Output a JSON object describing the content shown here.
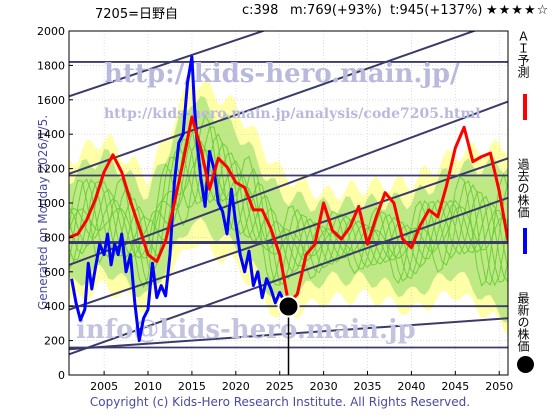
{
  "header": {
    "code_label": "7205=日野自",
    "current": "c:398",
    "mid": "m:769(+93%)",
    "top": "t:945(+137%)",
    "stars": "★★★★☆"
  },
  "side_label": "Generated on Monday 2026/1/5.",
  "watermarks": {
    "url_big": "http://kids-hero.main.jp/",
    "url_small": "http://kids-hero.main.jp/analysis/code7205.html",
    "email": "info@kids-hero.main.jp"
  },
  "legend": {
    "ai_label": "ＡＩ予測",
    "past_label": "過去の株価",
    "latest_label": "最新の株価"
  },
  "footer": "Copyright (c) Kids-Hero Research Institute. All Rights Reserved.",
  "colors": {
    "ai": "#ff0000",
    "past": "#0000ff",
    "latest": "#000000",
    "band_green": "#66cc33",
    "band_yellow": "#ffff99",
    "trend_lines": "#3b3b6b",
    "axis_text": "#000000",
    "watermark": "#9a9acc"
  },
  "chart_data": {
    "type": "line",
    "xlim": [
      2001,
      2051
    ],
    "ylim": [
      0,
      2000
    ],
    "xticks": [
      2005,
      2010,
      2015,
      2020,
      2025,
      2030,
      2035,
      2040,
      2045,
      2050
    ],
    "yticks": [
      0,
      200,
      400,
      600,
      800,
      1000,
      1200,
      1400,
      1600,
      1800,
      2000
    ],
    "horizontal_lines": [
      160,
      400,
      770,
      1160,
      1820
    ],
    "latest_point": {
      "x": 2026.0,
      "y": 398
    },
    "trend_channels": [
      {
        "from": [
          2001,
          120
        ],
        "to": [
          2051,
          1030
        ]
      },
      {
        "from": [
          2001,
          380
        ],
        "to": [
          2051,
          1260
        ]
      },
      {
        "from": [
          2001,
          640
        ],
        "to": [
          2051,
          1590
        ]
      },
      {
        "from": [
          2001,
          1170
        ],
        "to": [
          2051,
          2070
        ]
      },
      {
        "from": [
          2001,
          1620
        ],
        "to": [
          2051,
          2480
        ]
      },
      {
        "from": [
          2001,
          150
        ],
        "to": [
          2051,
          330
        ]
      }
    ],
    "series": [
      {
        "name": "過去の株価",
        "color": "#0000ff",
        "x": [
          2001.3,
          2001.8,
          2002.3,
          2002.8,
          2003.2,
          2003.6,
          2004.0,
          2004.5,
          2005.0,
          2005.4,
          2005.8,
          2006.2,
          2006.6,
          2007.0,
          2007.5,
          2008.0,
          2008.5,
          2009.0,
          2009.5,
          2010.0,
          2010.5,
          2011.0,
          2011.5,
          2012.0,
          2012.5,
          2013.0,
          2013.5,
          2014.0,
          2014.5,
          2015.0,
          2015.3,
          2015.6,
          2016.0,
          2016.5,
          2017.0,
          2017.5,
          2018.0,
          2018.5,
          2019.0,
          2019.5,
          2020.0,
          2020.5,
          2021.0,
          2021.5,
          2022.0,
          2022.5,
          2023.0,
          2023.5,
          2024.0,
          2024.5,
          2025.0,
          2025.5,
          2026.0
        ],
        "y": [
          560,
          420,
          320,
          380,
          650,
          500,
          620,
          760,
          700,
          820,
          640,
          760,
          700,
          820,
          600,
          700,
          420,
          200,
          330,
          380,
          650,
          450,
          520,
          460,
          700,
          1120,
          1350,
          1400,
          1700,
          1850,
          1550,
          1350,
          1150,
          980,
          1300,
          1200,
          1000,
          950,
          820,
          1080,
          880,
          700,
          600,
          720,
          520,
          600,
          450,
          560,
          500,
          420,
          480,
          430,
          398
        ]
      },
      {
        "name": "ＡＩ予測",
        "color": "#ff0000",
        "x": [
          2001.0,
          2002.0,
          2003.0,
          2004.0,
          2005.0,
          2006.0,
          2007.0,
          2008.0,
          2009.0,
          2010.0,
          2011.0,
          2012.0,
          2013.0,
          2014.0,
          2015.0,
          2016.0,
          2017.0,
          2018.0,
          2019.0,
          2020.0,
          2021.0,
          2022.0,
          2023.0,
          2024.0,
          2025.0,
          2026.0,
          2027.0,
          2028.0,
          2029.0,
          2030.0,
          2031.0,
          2032.0,
          2033.0,
          2034.0,
          2035.0,
          2036.0,
          2037.0,
          2038.0,
          2039.0,
          2040.0,
          2041.0,
          2042.0,
          2043.0,
          2044.0,
          2045.0,
          2046.0,
          2047.0,
          2048.0,
          2049.0,
          2050.0,
          2051.0
        ],
        "y": [
          800,
          820,
          900,
          1020,
          1180,
          1280,
          1180,
          1010,
          860,
          700,
          660,
          780,
          1000,
          1240,
          1500,
          1320,
          1080,
          1260,
          1210,
          1120,
          1090,
          960,
          960,
          850,
          700,
          420,
          470,
          700,
          760,
          1000,
          840,
          790,
          860,
          980,
          760,
          920,
          1060,
          1000,
          790,
          740,
          870,
          960,
          920,
          1100,
          1320,
          1440,
          1240,
          1270,
          1290,
          1070,
          780
        ]
      }
    ],
    "bands": [
      {
        "kind": "yellow",
        "x": [
          2001,
          2005,
          2010,
          2015,
          2020,
          2025,
          2030,
          2035,
          2040,
          2045,
          2051
        ],
        "low": [
          420,
          520,
          380,
          780,
          640,
          330,
          430,
          460,
          370,
          480,
          270
        ],
        "high": [
          1250,
          1380,
          1150,
          1720,
          1560,
          1180,
          1050,
          1100,
          1120,
          1290,
          1330
        ]
      },
      {
        "kind": "green",
        "x": [
          2001,
          2005,
          2010,
          2015,
          2020,
          2025,
          2030,
          2035,
          2040,
          2045,
          2051
        ],
        "low": [
          520,
          620,
          450,
          900,
          750,
          420,
          560,
          560,
          470,
          600,
          330
        ],
        "high": [
          1150,
          1280,
          1050,
          1620,
          1430,
          1050,
          980,
          1000,
          1020,
          1200,
          1230
        ]
      }
    ]
  }
}
